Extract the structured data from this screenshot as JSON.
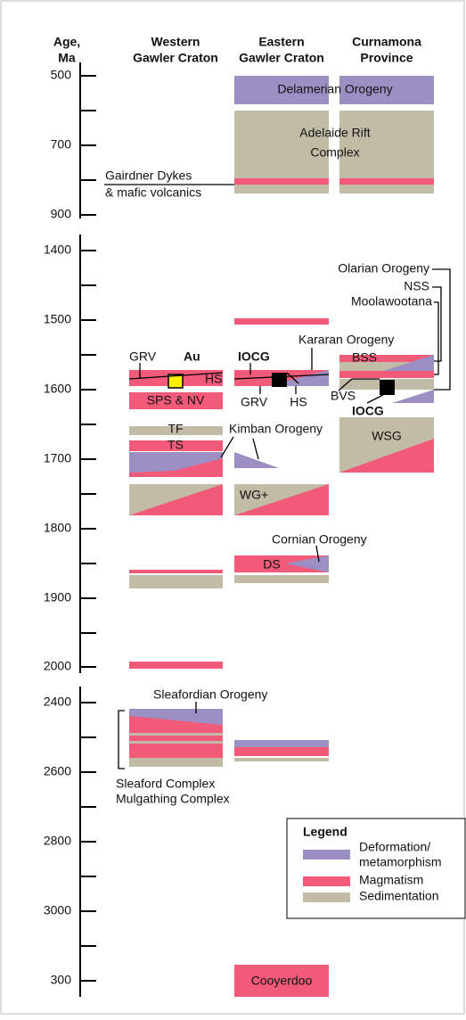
{
  "headers": [
    {
      "lines": [
        "Age,",
        "Ma"
      ]
    },
    {
      "lines": [
        "Western",
        "Gawler Craton"
      ]
    },
    {
      "lines": [
        "Eastern",
        "Gawler Craton"
      ]
    },
    {
      "lines": [
        "Curnamona",
        "Province"
      ]
    }
  ],
  "age_ticks": [
    "500",
    "700",
    "900",
    "1400",
    "1500",
    "1600",
    "1700",
    "1800",
    "1900",
    "2000",
    "2400",
    "2600",
    "2800",
    "3000",
    "300"
  ],
  "labels": [
    "Delamerian Orogeny",
    "Adelaide Rift",
    "Complex",
    "Gairdner Dykes",
    "& mafic volcanics",
    "Olarian Orogeny",
    "NSS",
    "Moolawootana",
    "Kararan Orogeny",
    "GRV",
    "Au",
    "IOCG",
    "HS",
    "SPS & NV",
    "BSS",
    "GRV",
    "HS",
    "BVS",
    "IOCG",
    "TF",
    "TS",
    "Kimban Orogeny",
    "WSG",
    "WG+",
    "Cornian Orogeny",
    "DS",
    "Sleafordian Orogeny",
    "Sleaford Complex",
    "Mulgathing Complex",
    "Cooyerdoo"
  ],
  "legend": {
    "title": "Legend",
    "items": [
      {
        "lines": [
          "Deformation/",
          "metamorphism"
        ]
      },
      {
        "lines": [
          "Magmatism"
        ]
      },
      {
        "lines": [
          "Sedimentation"
        ]
      }
    ]
  }
}
